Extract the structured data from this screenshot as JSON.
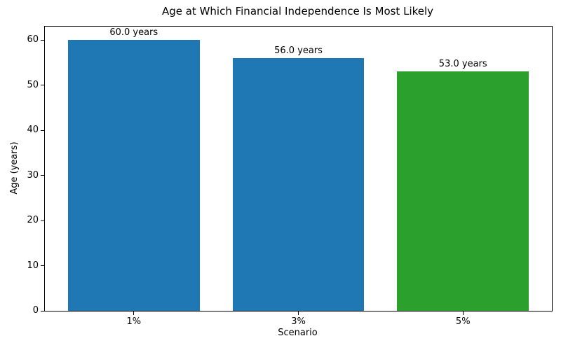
{
  "figure": {
    "background": "#ffffff",
    "text_color": "#000000",
    "spine_color": "#000000"
  },
  "chart_data": {
    "type": "bar",
    "title": "Age at Which Financial Independence Is Most Likely",
    "xlabel": "Scenario",
    "ylabel": "Age (years)",
    "categories": [
      "1%",
      "3%",
      "5%"
    ],
    "values": [
      60.0,
      56.0,
      53.0
    ],
    "bar_labels": [
      "60.0 years",
      "56.0 years",
      "53.0 years"
    ],
    "bar_colors": [
      "#1f77b4",
      "#1f77b4",
      "#2ca02c"
    ],
    "yticks": [
      0,
      10,
      20,
      30,
      40,
      50,
      60
    ],
    "ylim": [
      0,
      63
    ],
    "xlim": [
      -0.54,
      2.54
    ],
    "bar_width_units": 0.8,
    "grid": false,
    "legend_position": "none"
  }
}
